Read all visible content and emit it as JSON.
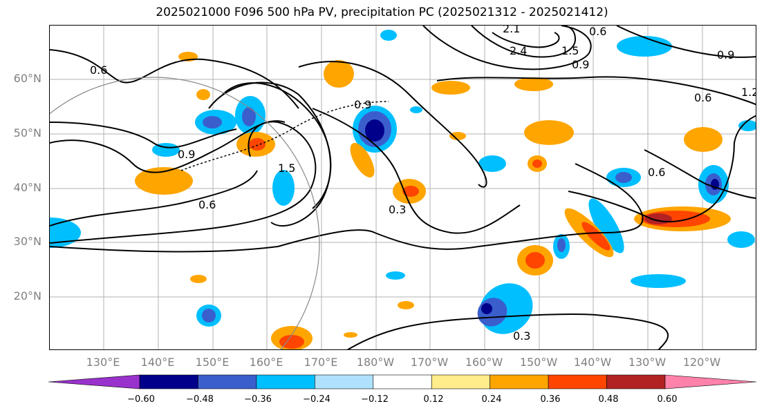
{
  "title": "2025021000 F096 500 hPa PV, precipitation PC (2025021312 - 2025021412)",
  "lat_labels": [
    "60°N",
    "50°N",
    "40°N",
    "30°N",
    "20°N"
  ],
  "lon_labels": [
    "130°E",
    "140°E",
    "150°E",
    "160°E",
    "170°E",
    "180°W",
    "170°W",
    "160°W",
    "150°W",
    "140°W",
    "130°W",
    "120°W"
  ],
  "contour_labels": [
    "0.6",
    "0.9",
    "1.5",
    "0.6",
    "0.9",
    "0.3",
    "2.4",
    "2.1",
    "1.5",
    "0.9",
    "0.9",
    "0.6",
    "1.2",
    "0.6",
    "0.6",
    "0.3"
  ],
  "colorbar": {
    "ticks": [
      "−0.60",
      "−0.48",
      "−0.36",
      "−0.24",
      "−0.12",
      "0.12",
      "0.24",
      "0.36",
      "0.48",
      "0.60"
    ],
    "colors": [
      "#9932cc",
      "#00008b",
      "#3a5fcd",
      "#00bfff",
      "#b0e2ff",
      "#ffffff",
      "#ffec8b",
      "#ffa500",
      "#ff4500",
      "#b22222",
      "#ff82ab"
    ]
  }
}
